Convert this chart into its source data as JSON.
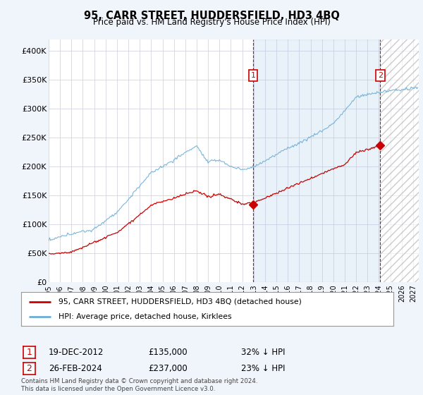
{
  "title": "95, CARR STREET, HUDDERSFIELD, HD3 4BQ",
  "subtitle": "Price paid vs. HM Land Registry's House Price Index (HPI)",
  "hpi_label": "HPI: Average price, detached house, Kirklees",
  "price_label": "95, CARR STREET, HUDDERSFIELD, HD3 4BQ (detached house)",
  "hpi_color": "#6baed6",
  "price_color": "#cc0000",
  "annotation1_date": "19-DEC-2012",
  "annotation1_price": 135000,
  "annotation1_text": "32% ↓ HPI",
  "annotation2_date": "26-FEB-2024",
  "annotation2_price": 237000,
  "annotation2_text": "23% ↓ HPI",
  "ylim": [
    0,
    420000
  ],
  "xlim_start": 1995.0,
  "xlim_end": 2027.5,
  "yticks": [
    0,
    50000,
    100000,
    150000,
    200000,
    250000,
    300000,
    350000,
    400000
  ],
  "ytick_labels": [
    "£0",
    "£50K",
    "£100K",
    "£150K",
    "£200K",
    "£250K",
    "£300K",
    "£350K",
    "£400K"
  ],
  "footer": "Contains HM Land Registry data © Crown copyright and database right 2024.\nThis data is licensed under the Open Government Licence v3.0.",
  "background_color": "#f0f4fb",
  "plot_bg_color": "#ffffff",
  "grid_color": "#ccccdd",
  "shade_color": "#ddeeff",
  "hatch_color": "#bbbbcc",
  "ann1_x": 2012.96,
  "ann2_x": 2024.12,
  "future_x": 2024.12
}
